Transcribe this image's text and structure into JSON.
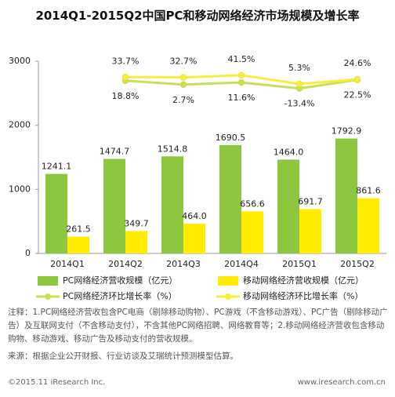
{
  "chart_data": {
    "type": "bar",
    "title": "2014Q1-2015Q2中国PC和移动网络经济市场规模及增长率",
    "categories": [
      "2014Q1",
      "2014Q2",
      "2014Q3",
      "2014Q4",
      "2015Q1",
      "2015Q2"
    ],
    "ylim": [
      0,
      3000
    ],
    "yticks": [
      0,
      1000,
      2000,
      3000
    ],
    "y2lim": [
      -700,
      100
    ],
    "grid": false,
    "series": [
      {
        "name": "PC网络经济营收规模（亿元）",
        "type": "bar",
        "color": "#8dc63f",
        "values": [
          1241.1,
          1474.7,
          1514.8,
          1690.5,
          1464.0,
          1792.9
        ],
        "value_labels": [
          "1241.1",
          "1474.7",
          "1514.8",
          "1690.5",
          "1464.0",
          "1792.9"
        ]
      },
      {
        "name": "移动网络经济营收规模（亿元）",
        "type": "bar",
        "color": "#ffec00",
        "values": [
          261.5,
          349.7,
          464.0,
          656.6,
          691.7,
          861.6
        ],
        "value_labels": [
          "261.5",
          "349.7",
          "464.0",
          "656.6",
          "691.7",
          "861.6"
        ]
      },
      {
        "name": "PC网络经济环比增长率（%）",
        "type": "line",
        "axis": "y2",
        "color": "#c9df5a",
        "label_pos": "below",
        "values": [
          null,
          18.8,
          2.7,
          11.6,
          -13.4,
          22.5
        ],
        "value_labels": [
          null,
          "18.8%",
          "2.7%",
          "11.6%",
          "-13.4%",
          "22.5%"
        ]
      },
      {
        "name": "移动网络经济环比增长率（%）",
        "type": "line",
        "axis": "y2",
        "color": "#f7ef3e",
        "label_pos": "above",
        "values": [
          null,
          33.7,
          32.7,
          41.5,
          5.3,
          24.6
        ],
        "value_labels": [
          null,
          "33.7%",
          "32.7%",
          "41.5%",
          "5.3%",
          "24.6%"
        ]
      }
    ],
    "notes": "注释：1.PC网络经济营收包含PC电商（剔除移动购物）、PC游戏（不含移动游戏）、PC广告（剔除移动广告）及互联网支付（不含移动支付），不含其他PC网络招聘、网络教育等；2.移动网络经济营收包含移动购物、移动游戏、移动广告及移动支付的营收规模。",
    "source": "来源：根据企业公开财报、行业访谈及艾瑞统计预测模型估算。",
    "copyright": "©2015.11 iResearch Inc.",
    "website": "www.iresearch.com.cn"
  }
}
